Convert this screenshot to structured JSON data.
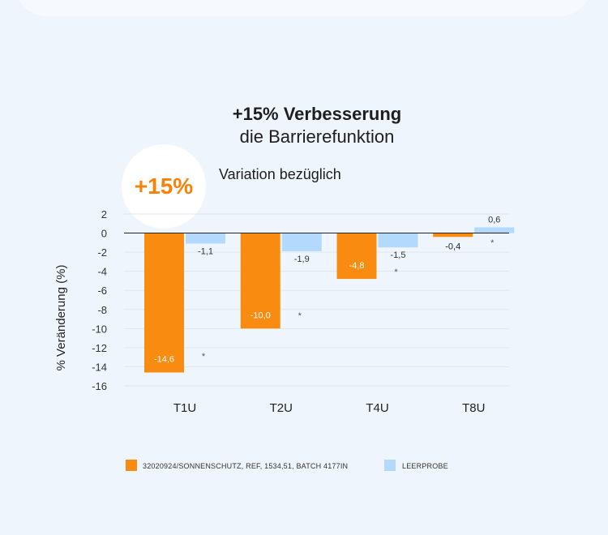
{
  "title_line1": "+15% Verbesserung",
  "title_line2": "die Barrierefunktion",
  "badge": "+15%",
  "subtitle": "Variation bezüglich",
  "colors": {
    "orange": "#f98b10",
    "blue": "#b3dafc",
    "grid": "#dfe6ee"
  },
  "chart_data": {
    "type": "bar",
    "categories": [
      "T1U",
      "T2U",
      "T4U",
      "T8U"
    ],
    "series": [
      {
        "name": "32020924/SONNENSCHUTZ, REF, 1534,51, BATCH 4177IN",
        "values": [
          -14.6,
          -10.0,
          -4.8,
          -0.4
        ],
        "labels": [
          "-14,6",
          "-10,0",
          "-4,8",
          "-0,4"
        ],
        "significance": [
          "",
          "",
          "",
          ""
        ]
      },
      {
        "name": "LEERPROBE",
        "values": [
          -1.1,
          -1.9,
          -1.5,
          0.6
        ],
        "labels": [
          "-1,1",
          "-1,9",
          "-1,5",
          "0,6"
        ],
        "significance": [
          "*",
          "*",
          "*",
          "*"
        ]
      }
    ],
    "ylabel": "% Veränderung (%)",
    "ylim": [
      -16,
      2
    ],
    "yticks": [
      2,
      0,
      -2,
      -4,
      -6,
      -8,
      -10,
      -12,
      -14,
      -16
    ],
    "grid": true,
    "legend": "bottom"
  }
}
